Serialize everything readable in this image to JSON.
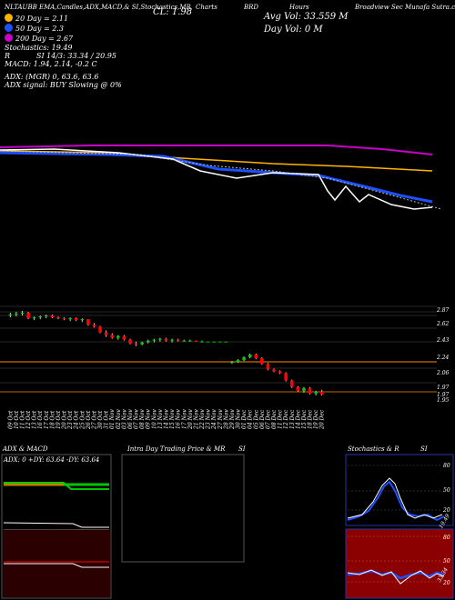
{
  "header": {
    "title_left": "NLTAUBB EMA,Candles,ADX,MACD,& SI,Stochastics,MR",
    "close_text": "CL: 1.98",
    "avg_vol_text": "Avg Vol: 33.559 M",
    "day_vol_text": "Day Vol: 0   M",
    "company_text": "Broadview Sec Munafa  Sutra.com",
    "price_label": "Hours",
    "code_label": "BRD",
    "charts_label": "Charts"
  },
  "legend": {
    "ema20": {
      "label": "20  Day = 2.11",
      "color": "#ffb400"
    },
    "ema50": {
      "label": "50  Day = 2.3",
      "color": "#1e50ff"
    },
    "ema200": {
      "label": "200  Day = 2.67",
      "color": "#c800c8"
    },
    "stoch": "Stochastics: 19.49",
    "si": "SI 14/3: 33.34  / 20.95",
    "macd": "MACD: 1.94, 2.14,  -0.2  C",
    "adx": "ADX:               (MGR) 0, 63.6, 63.6",
    "adx_signal": "ADX  signal:                          BUY Slowing @ 0%",
    "r_label": "R"
  },
  "colors": {
    "up": "#00c800",
    "down": "#ff0000",
    "ema20": "#ffb400",
    "ema50": "#1e50ff",
    "ema200": "#c800c8"
  },
  "dates": [
    "09 Oct",
    "10 Oct",
    "11 Oct",
    "12 Oct",
    "13 Oct",
    "16 Oct",
    "17 Oct",
    "18 Oct",
    "19 Oct",
    "20 Oct",
    "23 Oct",
    "24 Oct",
    "25 Oct",
    "26 Oct",
    "27 Oct",
    "30 Oct",
    "31 Oct",
    "01 Nov",
    "02 Nov",
    "03 Nov",
    "06 Nov",
    "07 Nov",
    "08 Nov",
    "09 Nov",
    "10 Nov",
    "13 Nov",
    "14 Nov",
    "15 Nov",
    "16 Nov",
    "17 Nov",
    "20 Nov",
    "21 Nov",
    "22 Nov",
    "23 Nov",
    "24 Nov",
    "27 Nov",
    "28 Nov",
    "29 Nov",
    "30 Nov",
    "01 Dec",
    "04 Dec",
    "05 Dec",
    "06 Dec",
    "07 Dec",
    "08 Dec",
    "11 Dec",
    "12 Dec",
    "13 Dec",
    "14 Dec",
    "15 Dec",
    "18 Dec",
    "19 Dec",
    "20 Dec"
  ],
  "price_ticks": [
    "2.87",
    "2.62",
    "2.43",
    "2.24",
    "2.06",
    "1.97",
    "1.97",
    "1.95"
  ],
  "panels": {
    "adx_title": "ADX  & MACD",
    "adx_values": "ADX: 0   +DY: 63.64   -DY: 63.64",
    "intra_title": "Intra Day Trading Price  & MR",
    "intra_si": "SI",
    "stoch_title": "Stochastics & R",
    "stoch_si": "SI",
    "stoch_ticks": [
      "80",
      "50",
      "20"
    ],
    "stoch_end": "19.49",
    "si_ticks": [
      "80",
      "50",
      "20"
    ],
    "si_end": "33.34"
  },
  "chart_data": {
    "type": "candlestick",
    "title": "NLTAUBB EMA,Candles,ADX,MACD,& SI,Stochastics,MR",
    "close": 1.98,
    "candles": [
      [
        2.83,
        2.86,
        2.81,
        2.84
      ],
      [
        2.84,
        2.87,
        2.82,
        2.85
      ],
      [
        2.85,
        2.88,
        2.83,
        2.86
      ],
      [
        2.86,
        2.87,
        2.79,
        2.8
      ],
      [
        2.8,
        2.82,
        2.78,
        2.81
      ],
      [
        2.81,
        2.83,
        2.79,
        2.82
      ],
      [
        2.82,
        2.84,
        2.8,
        2.83
      ],
      [
        2.83,
        2.84,
        2.8,
        2.81
      ],
      [
        2.81,
        2.82,
        2.79,
        2.8
      ],
      [
        2.8,
        2.81,
        2.78,
        2.79
      ],
      [
        2.79,
        2.81,
        2.77,
        2.8
      ],
      [
        2.8,
        2.81,
        2.77,
        2.78
      ],
      [
        2.78,
        2.8,
        2.76,
        2.79
      ],
      [
        2.79,
        2.79,
        2.72,
        2.73
      ],
      [
        2.73,
        2.75,
        2.7,
        2.71
      ],
      [
        2.71,
        2.72,
        2.64,
        2.65
      ],
      [
        2.65,
        2.67,
        2.6,
        2.62
      ],
      [
        2.62,
        2.64,
        2.58,
        2.59
      ],
      [
        2.59,
        2.62,
        2.57,
        2.61
      ],
      [
        2.61,
        2.62,
        2.56,
        2.57
      ],
      [
        2.57,
        2.58,
        2.52,
        2.53
      ],
      [
        2.53,
        2.55,
        2.5,
        2.52
      ],
      [
        2.52,
        2.55,
        2.51,
        2.54
      ],
      [
        2.54,
        2.57,
        2.53,
        2.56
      ],
      [
        2.56,
        2.58,
        2.54,
        2.57
      ],
      [
        2.57,
        2.59,
        2.55,
        2.58
      ],
      [
        2.58,
        2.59,
        2.55,
        2.56
      ],
      [
        2.56,
        2.58,
        2.54,
        2.57
      ],
      [
        2.57,
        2.58,
        2.55,
        2.56
      ],
      [
        2.56,
        2.57,
        2.55,
        2.56
      ],
      [
        2.56,
        2.57,
        2.55,
        2.56
      ],
      [
        2.56,
        2.56,
        2.55,
        2.55
      ],
      [
        2.55,
        2.56,
        2.55,
        2.55
      ],
      [
        2.55,
        2.55,
        2.55,
        2.55
      ],
      [
        2.55,
        2.55,
        2.55,
        2.55
      ],
      [
        2.55,
        2.55,
        2.55,
        2.55
      ],
      [
        2.55,
        2.55,
        2.55,
        2.55
      ],
      [
        2.32,
        2.34,
        2.31,
        2.33
      ],
      [
        2.33,
        2.36,
        2.32,
        2.35
      ],
      [
        2.35,
        2.39,
        2.34,
        2.38
      ],
      [
        2.38,
        2.42,
        2.37,
        2.41
      ],
      [
        2.41,
        2.42,
        2.36,
        2.37
      ],
      [
        2.37,
        2.38,
        2.3,
        2.31
      ],
      [
        2.31,
        2.32,
        2.24,
        2.25
      ],
      [
        2.25,
        2.26,
        2.22,
        2.23
      ],
      [
        2.23,
        2.24,
        2.2,
        2.21
      ],
      [
        2.21,
        2.22,
        2.12,
        2.13
      ],
      [
        2.13,
        2.14,
        2.05,
        2.06
      ],
      [
        2.06,
        2.07,
        2.01,
        2.02
      ],
      [
        2.02,
        2.06,
        2.0,
        2.05
      ],
      [
        2.05,
        2.06,
        1.98,
        1.99
      ],
      [
        1.99,
        2.02,
        1.97,
        2.01
      ],
      [
        2.01,
        2.03,
        1.97,
        1.98
      ]
    ],
    "stochastics_last": 19.49,
    "si_last": [
      33.34,
      20.95
    ],
    "adx": [
      0,
      63.64,
      63.64
    ]
  }
}
